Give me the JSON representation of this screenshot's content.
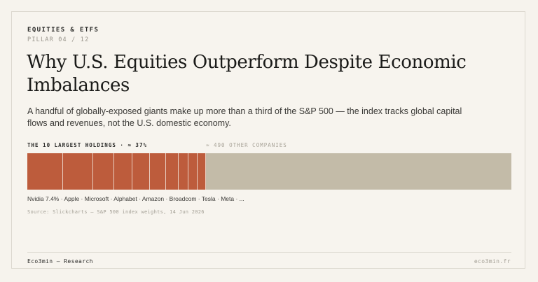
{
  "header": {
    "eyebrow": "EQUITIES & ETFS",
    "pillar": "PILLAR 04 / 12"
  },
  "title": "Why U.S. Equities Outperform Despite Economic Imbalances",
  "subtitle": "A handful of globally-exposed giants make up more than a third of the S&P 500 — the index tracks global capital flows and revenues, not the U.S. domestic economy.",
  "bar": {
    "left_label": "THE 10 LARGEST HOLDINGS · ≈ 37%",
    "right_label": "≈ 490 OTHER COMPANIES",
    "top10_share_percent": 37,
    "top10_segment_weights_percent": [
      7.4,
      6.2,
      4.3,
      3.8,
      3.6,
      3.4,
      2.6,
      2.0,
      1.9,
      1.7
    ],
    "names_line": "Nvidia 7.4% · Apple · Microsoft · Alphabet · Amazon · Broadcom · Tesla · Meta · ...",
    "colors": {
      "top10": "#bd5c3c",
      "others": "#c3bba8"
    }
  },
  "source": "Source: Slickcharts — S&P 500 index weights, 14 Jun 2026",
  "footer": {
    "left": "Eco3min — Research",
    "right": "eco3min.fr"
  }
}
